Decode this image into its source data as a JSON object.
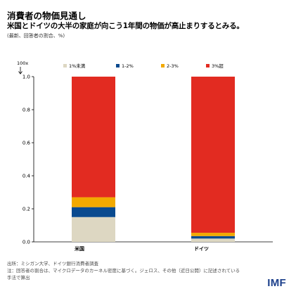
{
  "title": "消費者の物価見通し",
  "subtitle": "米国とドイツの大半の家庭が向こう1年間の物価が高止まりするとみる。",
  "note": "(最新、回答者の割合、%)",
  "source_lines": [
    "出所：ミシガン大学、ドイツ銀行消費者調査",
    "注：回答者の割合は、マイクロデータのカーネル密度に基づく。ジェロス、その他（近日公開）に記述されている",
    "手法で算出"
  ],
  "logo": "IMF",
  "chart_data": {
    "type": "bar",
    "stacked": true,
    "categories": [
      "米国",
      "ドイツ"
    ],
    "series": [
      {
        "name": "1%未満",
        "color": "#ddd7c2",
        "values": [
          0.15,
          0.02
        ]
      },
      {
        "name": "1-2%",
        "color": "#0a4a8f",
        "values": [
          0.06,
          0.015
        ]
      },
      {
        "name": "2-3%",
        "color": "#f2a900",
        "values": [
          0.06,
          0.02
        ]
      },
      {
        "name": "3%超",
        "color": "#e22b21",
        "values": [
          0.73,
          0.945
        ]
      }
    ],
    "yunit": "100x",
    "ylim": [
      0,
      1.0
    ],
    "yticks": [
      "0.0",
      "0.2",
      "0.4",
      "0.6",
      "0.8",
      "1.0"
    ],
    "legend_position": "top",
    "grid": false
  }
}
